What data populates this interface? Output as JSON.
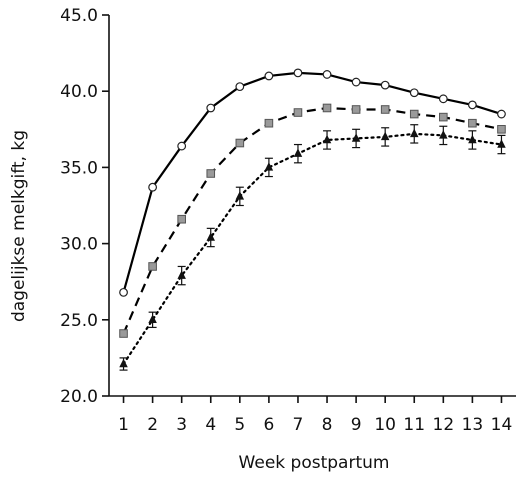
{
  "chart_data": {
    "type": "line",
    "title": "",
    "xlabel": "Week postpartum",
    "ylabel": "dagelijkse melkgift, kg",
    "x": [
      1,
      2,
      3,
      4,
      5,
      6,
      7,
      8,
      9,
      10,
      11,
      12,
      13,
      14
    ],
    "x_tick_labels": [
      "1",
      "2",
      "3",
      "4",
      "5",
      "6",
      "7",
      "8",
      "9",
      "10",
      "11",
      "12",
      "13",
      "14"
    ],
    "y_tick_labels": [
      "20.0",
      "25.0",
      "30.0",
      "35.0",
      "40.0",
      "45.0"
    ],
    "ylim": [
      20,
      45
    ],
    "xlim": [
      0.5,
      14.5
    ],
    "grid": false,
    "legend": "none",
    "series": [
      {
        "marker": "circle-open",
        "line_style": "solid",
        "color": "#000000",
        "values": [
          26.8,
          33.7,
          36.4,
          38.9,
          40.3,
          41.0,
          41.2,
          41.1,
          40.6,
          40.4,
          39.9,
          39.5,
          39.1,
          38.5
        ],
        "error": [
          0,
          0,
          0,
          0,
          0,
          0,
          0,
          0,
          0,
          0,
          0,
          0,
          0,
          0
        ]
      },
      {
        "marker": "square-gray",
        "line_style": "dashed",
        "color": "#000000",
        "values": [
          24.1,
          28.5,
          31.6,
          34.6,
          36.6,
          37.9,
          38.6,
          38.9,
          38.8,
          38.8,
          38.5,
          38.3,
          37.9,
          37.5
        ],
        "error": [
          0,
          0,
          0,
          0,
          0,
          0,
          0,
          0,
          0,
          0,
          0,
          0,
          0,
          0
        ]
      },
      {
        "marker": "triangle-filled",
        "line_style": "dotted",
        "color": "#000000",
        "values": [
          22.1,
          25.0,
          27.9,
          30.4,
          33.1,
          35.0,
          35.9,
          36.8,
          36.9,
          37.0,
          37.2,
          37.1,
          36.8,
          36.5
        ],
        "error": [
          0.4,
          0.5,
          0.6,
          0.6,
          0.6,
          0.6,
          0.6,
          0.6,
          0.6,
          0.6,
          0.6,
          0.6,
          0.6,
          0.6
        ]
      }
    ]
  }
}
